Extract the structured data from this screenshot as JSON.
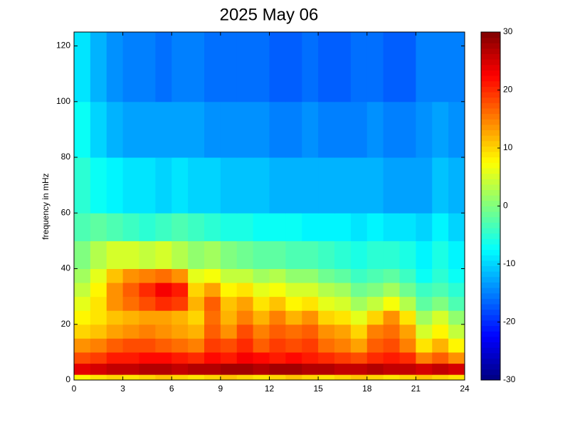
{
  "chart_data": {
    "type": "heatmap",
    "title": "2025 May 06",
    "y_label": "frequency in mHz",
    "colormap": "jet",
    "clim": [
      -30,
      30
    ],
    "cticks": [
      -30,
      -20,
      -10,
      0,
      10,
      20,
      30
    ],
    "xlim": [
      0,
      24
    ],
    "ylim": [
      0,
      125
    ],
    "xticks": [
      0,
      3,
      6,
      9,
      12,
      15,
      18,
      21,
      24
    ],
    "yticks": [
      0,
      20,
      40,
      60,
      80,
      100,
      120
    ],
    "x_edges": [
      0,
      1,
      2,
      3,
      4,
      5,
      6,
      7,
      8,
      9,
      10,
      11,
      12,
      13,
      14,
      15,
      16,
      17,
      18,
      19,
      20,
      21,
      22,
      23,
      24
    ],
    "y_edges": [
      0,
      2,
      6,
      10,
      15,
      20,
      25,
      30,
      35,
      40,
      50,
      60,
      80,
      100,
      125
    ],
    "values": [
      [
        8,
        9,
        10,
        9,
        10,
        11,
        10,
        9,
        10,
        11,
        10,
        9,
        10,
        11,
        10,
        9,
        10,
        11,
        10,
        9,
        10,
        11,
        10,
        9
      ],
      [
        24,
        25,
        26,
        26,
        27,
        27,
        26,
        27,
        27,
        28,
        28,
        27,
        28,
        28,
        27,
        27,
        26,
        26,
        27,
        26,
        26,
        25,
        26,
        25
      ],
      [
        18,
        19,
        21,
        21,
        22,
        22,
        21,
        20,
        22,
        21,
        23,
        22,
        21,
        22,
        21,
        20,
        19,
        18,
        20,
        21,
        20,
        15,
        17,
        14
      ],
      [
        14,
        15,
        17,
        18,
        18,
        17,
        16,
        15,
        19,
        18,
        20,
        17,
        19,
        18,
        19,
        16,
        15,
        13,
        17,
        18,
        15,
        9,
        12,
        8
      ],
      [
        10,
        11,
        13,
        14,
        15,
        14,
        13,
        12,
        17,
        14,
        18,
        15,
        17,
        16,
        17,
        14,
        13,
        10,
        15,
        16,
        13,
        5,
        8,
        4
      ],
      [
        8,
        9,
        11,
        12,
        13,
        13,
        12,
        10,
        16,
        12,
        15,
        12,
        15,
        12,
        14,
        10,
        9,
        6,
        10,
        14,
        9,
        2,
        5,
        1
      ],
      [
        6,
        9,
        14,
        16,
        18,
        20,
        19,
        12,
        17,
        11,
        13,
        9,
        11,
        8,
        9,
        6,
        5,
        2,
        4,
        7,
        3,
        -2,
        0,
        -3
      ],
      [
        4,
        8,
        14,
        17,
        20,
        23,
        21,
        10,
        13,
        8,
        9,
        6,
        7,
        5,
        5,
        3,
        2,
        -1,
        0,
        2,
        -1,
        -4,
        -3,
        -5
      ],
      [
        2,
        6,
        11,
        14,
        15,
        16,
        14,
        6,
        7,
        4,
        4,
        2,
        3,
        1,
        1,
        -1,
        -2,
        -4,
        -3,
        -2,
        -4,
        -7,
        -5,
        -7
      ],
      [
        0,
        3,
        5,
        5,
        4,
        5,
        3,
        1,
        2,
        0,
        -1,
        -2,
        -2,
        -3,
        -3,
        -4,
        -5,
        -6,
        -5,
        -5,
        -6,
        -8,
        -6,
        -8
      ],
      [
        -3,
        -2,
        -3,
        -4,
        -5,
        -4,
        -3,
        -4,
        -5,
        -6,
        -6,
        -7,
        -7,
        -7,
        -8,
        -8,
        -8,
        -9,
        -8,
        -9,
        -9,
        -10,
        -8,
        -10
      ],
      [
        -5,
        -7,
        -8,
        -9,
        -9,
        -10,
        -9,
        -10,
        -10,
        -11,
        -11,
        -11,
        -12,
        -12,
        -12,
        -12,
        -12,
        -12,
        -12,
        -13,
        -13,
        -13,
        -11,
        -12
      ],
      [
        -7,
        -10,
        -12,
        -13,
        -13,
        -13,
        -13,
        -13,
        -14,
        -14,
        -14,
        -14,
        -15,
        -15,
        -14,
        -15,
        -15,
        -15,
        -14,
        -15,
        -15,
        -14,
        -13,
        -14
      ],
      [
        -9,
        -12,
        -14,
        -15,
        -15,
        -16,
        -15,
        -15,
        -16,
        -16,
        -16,
        -16,
        -17,
        -17,
        -16,
        -17,
        -17,
        -16,
        -16,
        -17,
        -17,
        -15,
        -15,
        -15
      ]
    ]
  }
}
